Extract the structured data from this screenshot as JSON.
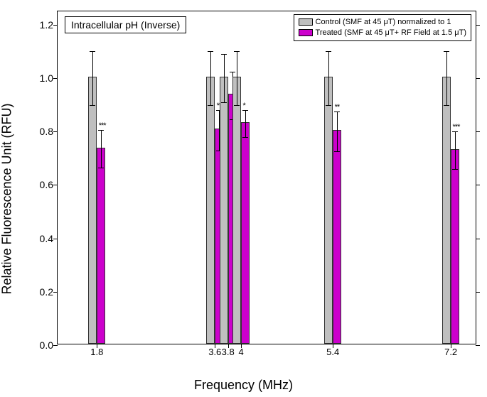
{
  "chart": {
    "type": "bar",
    "title": "Intracellular pH (Inverse)",
    "xlabel": "Frequency (MHz)",
    "ylabel": "Relative Fluorescence Unit (RFU)",
    "background_color": "#ffffff",
    "border_color": "#000000",
    "ylim": [
      0.0,
      1.25
    ],
    "ytick_step": 0.2,
    "yticks": [
      0.0,
      0.2,
      0.4,
      0.6,
      0.8,
      1.0,
      1.2
    ],
    "x_positions": [
      1.8,
      3.6,
      3.8,
      4.0,
      5.4,
      7.2
    ],
    "bar_width_units": 0.13,
    "colors": {
      "control": "#bfbfbf",
      "treated": "#cc00cc",
      "border": "#333333",
      "error": "#000000"
    },
    "legend": {
      "control": "Control (SMF at 45 μT) normalized to 1",
      "treated": "Treated (SMF at 45 μT+ RF Field at 1.5 μT)"
    },
    "series": {
      "control": {
        "values": [
          1.0,
          1.0,
          1.0,
          1.0,
          1.0,
          1.0
        ],
        "errors": [
          0.1,
          0.1,
          0.09,
          0.1,
          0.1,
          0.1
        ]
      },
      "treated": {
        "values": [
          0.735,
          0.805,
          0.935,
          0.83,
          0.8,
          0.73
        ],
        "errors": [
          0.07,
          0.075,
          0.09,
          0.05,
          0.075,
          0.07
        ],
        "significance": [
          "***",
          "**",
          "",
          "*",
          "**",
          "***"
        ]
      }
    },
    "axis_font_size": 14,
    "label_font_size": 18,
    "title_font_size": 14,
    "x_domain": [
      1.2,
      7.6
    ]
  }
}
